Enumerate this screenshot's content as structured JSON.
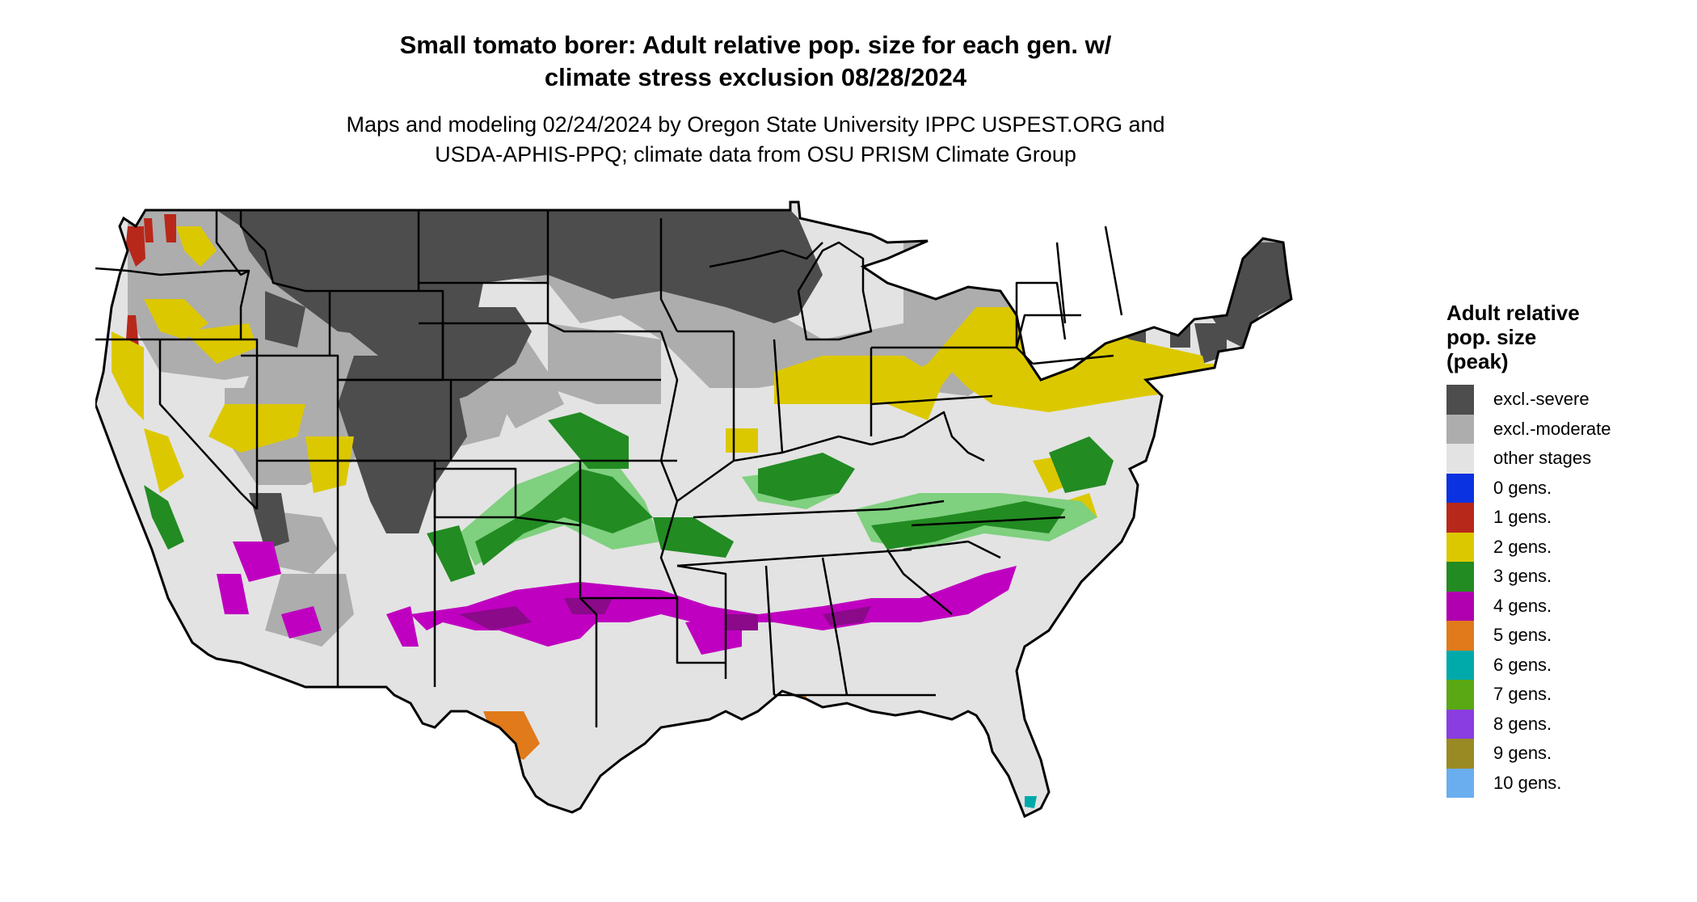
{
  "title": {
    "line1": "Small tomato borer: Adult relative pop. size for each gen. w/",
    "line2": "climate stress exclusion 08/28/2024"
  },
  "subtitle": {
    "line1": "Maps and modeling 02/24/2024 by Oregon State University IPPC USPEST.ORG and",
    "line2": "USDA-APHIS-PPQ; climate data from OSU PRISM Climate Group"
  },
  "legend": {
    "title_lines": [
      "Adult relative",
      "pop. size",
      "(peak)"
    ],
    "items": [
      {
        "label": "excl.-severe",
        "color": "#4d4d4d"
      },
      {
        "label": "excl.-moderate",
        "color": "#adadad"
      },
      {
        "label": "other stages",
        "color": "#e3e3e3"
      },
      {
        "label": "0 gens.",
        "color": "#0a32e0"
      },
      {
        "label": "1 gens.",
        "color": "#b8281a"
      },
      {
        "label": "2 gens.",
        "color": "#dcc800"
      },
      {
        "label": "3 gens.",
        "color": "#228b22"
      },
      {
        "label": "4 gens.",
        "color": "#b000b0"
      },
      {
        "label": "5 gens.",
        "color": "#e07a1a"
      },
      {
        "label": "6 gens.",
        "color": "#00aaaa"
      },
      {
        "label": "7 gens.",
        "color": "#5aa814"
      },
      {
        "label": "8 gens.",
        "color": "#8a3de0"
      },
      {
        "label": "9 gens.",
        "color": "#9a8a24"
      },
      {
        "label": "10 gens.",
        "color": "#6aaef0"
      }
    ]
  },
  "map": {
    "region": "contiguous United States",
    "colors": {
      "excl_severe": "#4d4d4d",
      "excl_moderate": "#adadad",
      "other_stages": "#e3e3e3",
      "gen1": "#b8281a",
      "gen2": "#dcc800",
      "gen3": "#228b22",
      "gen3_light": "#7fd07f",
      "gen4": "#c000c0",
      "gen5": "#e07a1a",
      "gen6": "#00aaaa",
      "borders": "#000000"
    }
  }
}
